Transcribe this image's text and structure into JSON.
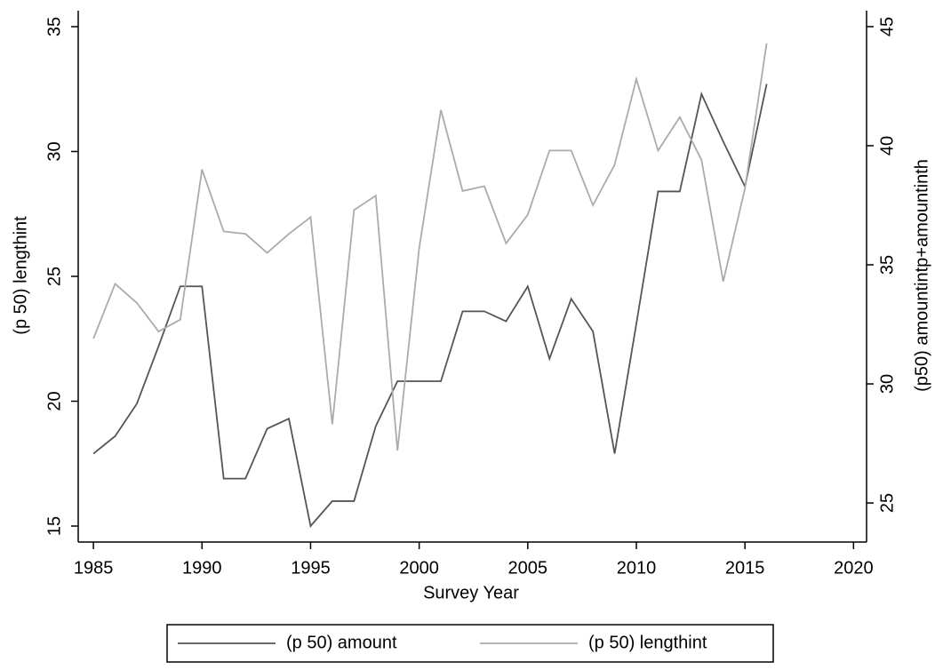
{
  "chart_data": {
    "type": "line",
    "x_label": "Survey Year",
    "y_label": "(p 50) lengthint",
    "y2_label": "(p50) amountintp+amountinth",
    "x": [
      1985,
      1986,
      1987,
      1988,
      1989,
      1990,
      1991,
      1992,
      1993,
      1994,
      1995,
      1996,
      1997,
      1998,
      1999,
      2000,
      2001,
      2002,
      2003,
      2004,
      2005,
      2006,
      2007,
      2008,
      2009,
      2010,
      2011,
      2012,
      2013,
      2014,
      2015,
      2016
    ],
    "series": [
      {
        "name": "(p 50) amount",
        "color": "#555555",
        "axis": "y",
        "values": [
          17.9,
          18.6,
          19.9,
          22.2,
          24.6,
          24.6,
          16.9,
          16.9,
          18.9,
          19.3,
          15.0,
          16.0,
          16.0,
          19.0,
          20.8,
          20.8,
          20.8,
          23.6,
          23.6,
          23.2,
          24.6,
          21.7,
          24.1,
          22.8,
          17.9,
          23.1,
          28.4,
          28.4,
          32.3,
          30.4,
          28.6,
          32.7
        ]
      },
      {
        "name": "(p 50) lengthint",
        "color": "#ababab",
        "axis": "y2",
        "values": [
          31.9,
          34.2,
          33.4,
          32.2,
          32.7,
          39.0,
          36.4,
          36.3,
          35.5,
          36.3,
          37.0,
          28.3,
          37.3,
          37.9,
          27.2,
          35.7,
          41.5,
          38.1,
          38.3,
          35.9,
          37.1,
          39.8,
          39.8,
          37.5,
          39.2,
          42.8,
          39.8,
          41.2,
          39.4,
          34.3,
          38.2,
          44.3
        ]
      }
    ],
    "xlim": [
      1984.3,
      2020.6
    ],
    "xticks": [
      1985,
      1990,
      1995,
      2000,
      2005,
      2010,
      2015,
      2020
    ],
    "ylim": [
      14.36,
      35.64
    ],
    "yticks": [
      15,
      20,
      25,
      30,
      35
    ],
    "y2lim": [
      23.36,
      45.67
    ],
    "y2ticks": [
      25,
      30,
      35,
      40,
      45
    ],
    "legend": "bottom"
  }
}
